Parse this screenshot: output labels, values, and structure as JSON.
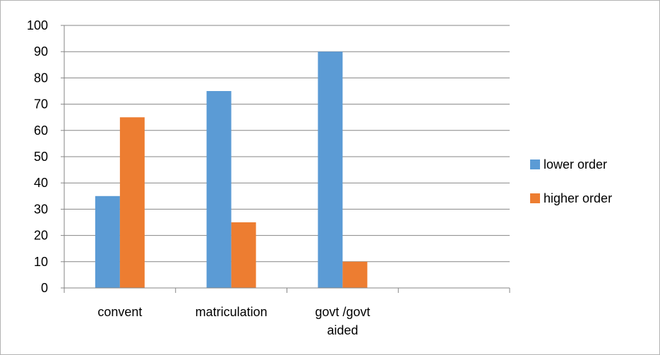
{
  "chart_data": {
    "type": "bar",
    "categories": [
      [
        "convent"
      ],
      [
        "matriculation"
      ],
      [
        "govt /govt",
        "aided"
      ],
      [
        ""
      ]
    ],
    "series": [
      {
        "name": "lower order",
        "color": "#5b9bd5",
        "values": [
          35,
          75,
          90,
          null
        ]
      },
      {
        "name": "higher order",
        "color": "#ed7d31",
        "values": [
          65,
          25,
          10,
          null
        ]
      }
    ],
    "ylim": [
      0,
      100
    ],
    "yticks": [
      0,
      10,
      20,
      30,
      40,
      50,
      60,
      70,
      80,
      90,
      100
    ],
    "grid": true,
    "gridline_color": "#868686",
    "legend": "right"
  }
}
